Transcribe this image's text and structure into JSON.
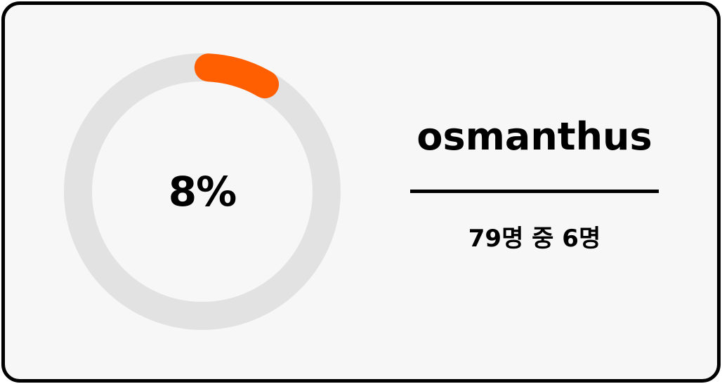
{
  "progress": {
    "percent_label": "8%",
    "fraction": 0.076,
    "track_color": "#e2e2e2",
    "fill_color": "#ff5f00"
  },
  "item": {
    "name": "osmanthus",
    "count_label": "79명 중 6명"
  }
}
